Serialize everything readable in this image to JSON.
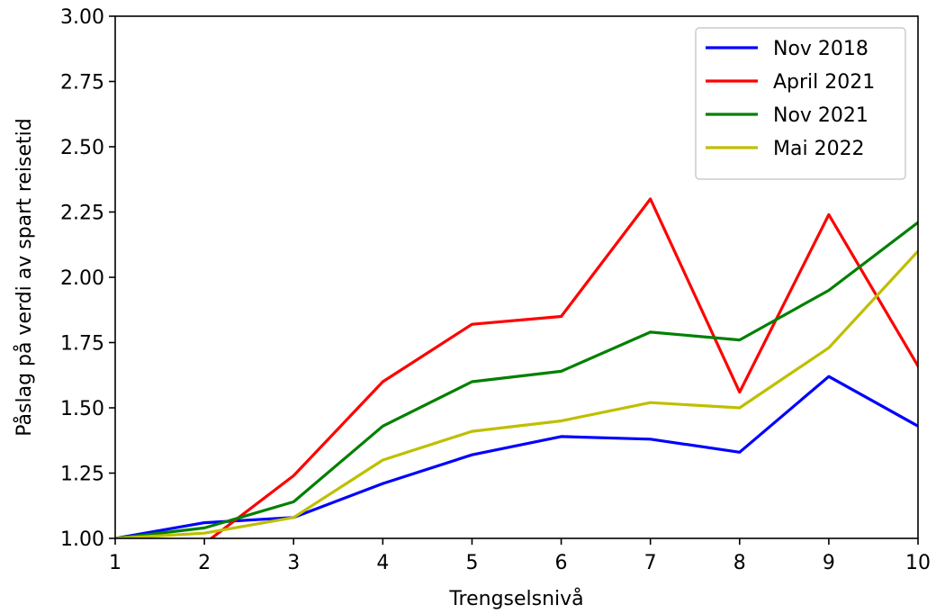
{
  "chart_data": {
    "type": "line",
    "title": "",
    "xlabel": "Trengselsnivå",
    "ylabel": "Påslag på verdi av spart reisetid",
    "x": [
      1,
      2,
      3,
      4,
      5,
      6,
      7,
      8,
      9,
      10
    ],
    "xlim": [
      1,
      10
    ],
    "ylim": [
      1.0,
      3.0
    ],
    "x_ticks": [
      "1",
      "2",
      "3",
      "4",
      "5",
      "6",
      "7",
      "8",
      "9",
      "10"
    ],
    "y_ticks": [
      "1.00",
      "1.25",
      "1.50",
      "1.75",
      "2.00",
      "2.25",
      "2.50",
      "2.75",
      "3.00"
    ],
    "grid": false,
    "legend_position": "top-right",
    "series": [
      {
        "name": "Nov 2018",
        "color": "#0000ff",
        "values": [
          1.0,
          1.06,
          1.08,
          1.21,
          1.32,
          1.39,
          1.38,
          1.33,
          1.62,
          1.43
        ]
      },
      {
        "name": "April 2021",
        "color": "#ff0000",
        "values": [
          1.0,
          0.98,
          1.24,
          1.6,
          1.82,
          1.85,
          2.3,
          1.56,
          2.24,
          1.66
        ]
      },
      {
        "name": "Nov 2021",
        "color": "#008000",
        "values": [
          1.0,
          1.04,
          1.14,
          1.43,
          1.6,
          1.64,
          1.79,
          1.76,
          1.95,
          2.21
        ]
      },
      {
        "name": "Mai 2022",
        "color": "#bfbf00",
        "values": [
          1.0,
          1.02,
          1.08,
          1.3,
          1.41,
          1.45,
          1.52,
          1.5,
          1.73,
          2.1
        ]
      }
    ]
  }
}
